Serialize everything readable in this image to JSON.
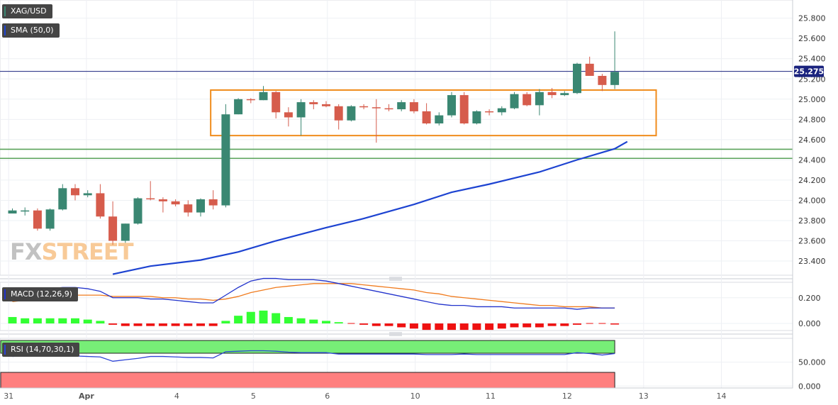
{
  "labels": {
    "symbol": "XAG/USD",
    "sma": "SMA (50,0)",
    "macd": "MACD (12,26,9)",
    "rsi": "RSI (14,70,30,1)",
    "price_tag": "25.275"
  },
  "watermark": {
    "part1": "FX",
    "part2": "STREET"
  },
  "colors": {
    "up": "#3a8772",
    "down": "#d65c4c",
    "sma": "#1d43d1",
    "box": "#f08c1c",
    "support": "#5aa35a",
    "price_line": "#1a237e",
    "macd_line": "#2233cc",
    "signal_line": "#f07b1e",
    "hist_up": "#33ff33",
    "hist_down": "#ee1111",
    "rsi_line": "#2d44d6",
    "rsi_upper_zone": "#77ee77",
    "rsi_lower_zone": "#ff7f7f",
    "tag_bg": "#1a237e"
  },
  "chart_data": [
    {
      "type": "candlestick",
      "title": "XAG/USD",
      "ylim": [
        23.26,
        25.98
      ],
      "y_ticks": [
        "25.800",
        "25.600",
        "25.400",
        "25.200",
        "25.000",
        "24.800",
        "24.600",
        "24.400",
        "24.200",
        "24.000",
        "23.800",
        "23.600",
        "23.400"
      ],
      "x_ticks": [
        "31",
        "Apr",
        "4",
        "5",
        "6",
        "10",
        "11",
        "12",
        "13",
        "14"
      ],
      "current_price": 25.275,
      "ohlc": [
        [
          23.87,
          23.92,
          23.87,
          23.9
        ],
        [
          23.9,
          23.93,
          23.85,
          23.9
        ],
        [
          23.9,
          23.92,
          23.7,
          23.72
        ],
        [
          23.72,
          23.92,
          23.7,
          23.91
        ],
        [
          23.91,
          24.16,
          23.9,
          24.12
        ],
        [
          24.12,
          24.16,
          24.0,
          24.05
        ],
        [
          24.05,
          24.1,
          24.03,
          24.07
        ],
        [
          24.07,
          24.16,
          23.82,
          23.84
        ],
        [
          23.84,
          23.99,
          23.56,
          23.6
        ],
        [
          23.6,
          23.77,
          23.58,
          23.77
        ],
        [
          23.77,
          24.03,
          23.76,
          24.02
        ],
        [
          24.02,
          24.19,
          24.0,
          24.01
        ],
        [
          24.01,
          24.03,
          23.88,
          23.99
        ],
        [
          23.99,
          24.01,
          23.94,
          23.96
        ],
        [
          23.96,
          24.0,
          23.84,
          23.88
        ],
        [
          23.88,
          24.02,
          23.84,
          24.01
        ],
        [
          24.01,
          24.1,
          23.91,
          23.95
        ],
        [
          23.95,
          24.95,
          23.93,
          24.85
        ],
        [
          24.85,
          25.01,
          24.85,
          25.0
        ],
        [
          25.0,
          25.01,
          24.96,
          24.99
        ],
        [
          24.99,
          25.13,
          24.99,
          25.07
        ],
        [
          25.07,
          25.08,
          24.81,
          24.87
        ],
        [
          24.87,
          24.92,
          24.73,
          24.82
        ],
        [
          24.82,
          25.0,
          24.64,
          24.97
        ],
        [
          24.97,
          24.99,
          24.9,
          24.95
        ],
        [
          24.95,
          24.98,
          24.92,
          24.93
        ],
        [
          24.93,
          24.95,
          24.7,
          24.79
        ],
        [
          24.79,
          24.94,
          24.78,
          24.93
        ],
        [
          24.93,
          24.95,
          24.9,
          24.92
        ],
        [
          24.92,
          25.0,
          24.57,
          24.91
        ],
        [
          24.91,
          24.95,
          24.88,
          24.9
        ],
        [
          24.9,
          24.99,
          24.88,
          24.97
        ],
        [
          24.97,
          25.0,
          24.86,
          24.88
        ],
        [
          24.88,
          24.96,
          24.75,
          24.76
        ],
        [
          24.76,
          24.87,
          24.74,
          24.84
        ],
        [
          24.84,
          25.07,
          24.82,
          25.04
        ],
        [
          25.04,
          25.07,
          24.75,
          24.76
        ],
        [
          24.76,
          24.89,
          24.75,
          24.88
        ],
        [
          24.88,
          24.9,
          24.84,
          24.87
        ],
        [
          24.87,
          24.93,
          24.84,
          24.91
        ],
        [
          24.91,
          25.07,
          24.9,
          25.05
        ],
        [
          25.05,
          25.07,
          24.93,
          24.94
        ],
        [
          24.94,
          25.1,
          24.84,
          25.07
        ],
        [
          25.07,
          25.11,
          25.01,
          25.04
        ],
        [
          25.04,
          25.08,
          25.03,
          25.06
        ],
        [
          25.06,
          25.36,
          25.05,
          25.35
        ],
        [
          25.35,
          25.42,
          25.24,
          25.23
        ],
        [
          25.23,
          25.25,
          25.08,
          25.14
        ],
        [
          25.14,
          25.67,
          25.1,
          25.27
        ]
      ],
      "sma_50": [
        [
          8,
          23.27
        ],
        [
          11,
          23.35
        ],
        [
          15,
          23.41
        ],
        [
          18,
          23.49
        ],
        [
          21,
          23.6
        ],
        [
          25,
          23.73
        ],
        [
          28,
          23.82
        ],
        [
          32,
          23.96
        ],
        [
          35,
          24.08
        ],
        [
          38,
          24.16
        ],
        [
          42,
          24.28
        ],
        [
          45,
          24.4
        ],
        [
          48,
          24.51
        ],
        [
          49,
          24.58
        ]
      ],
      "consolidation_box": {
        "top": 25.09,
        "bottom": 24.64,
        "start_index": 15.8,
        "end_index": 51.3
      },
      "support_lines": [
        24.505,
        24.415
      ]
    },
    {
      "type": "macd",
      "title": "MACD (12,26,9)",
      "ylim": [
        -0.055,
        0.32
      ],
      "y_ticks": [
        "0.200",
        "0.000"
      ],
      "histogram": [
        0.05,
        0.04,
        0.04,
        0.04,
        0.04,
        0.04,
        0.03,
        0.02,
        -0.01,
        -0.02,
        -0.02,
        -0.02,
        -0.02,
        -0.02,
        -0.02,
        -0.02,
        -0.02,
        0.02,
        0.06,
        0.09,
        0.1,
        0.08,
        0.05,
        0.04,
        0.03,
        0.02,
        0.01,
        0.0,
        -0.01,
        -0.02,
        -0.02,
        -0.03,
        -0.04,
        -0.05,
        -0.05,
        -0.05,
        -0.05,
        -0.05,
        -0.05,
        -0.04,
        -0.03,
        -0.03,
        -0.03,
        -0.02,
        -0.02,
        -0.01,
        0.0,
        0.0,
        -0.005
      ],
      "macd_line": [
        0.22,
        0.24,
        0.26,
        0.27,
        0.28,
        0.28,
        0.27,
        0.25,
        0.2,
        0.2,
        0.2,
        0.19,
        0.19,
        0.18,
        0.17,
        0.16,
        0.16,
        0.22,
        0.28,
        0.33,
        0.35,
        0.35,
        0.34,
        0.34,
        0.34,
        0.33,
        0.31,
        0.29,
        0.27,
        0.25,
        0.23,
        0.21,
        0.19,
        0.17,
        0.15,
        0.14,
        0.14,
        0.13,
        0.13,
        0.13,
        0.12,
        0.12,
        0.12,
        0.12,
        0.12,
        0.11,
        0.12,
        0.12,
        0.12
      ],
      "signal_line": [
        0.17,
        0.18,
        0.19,
        0.2,
        0.21,
        0.22,
        0.22,
        0.22,
        0.21,
        0.21,
        0.21,
        0.21,
        0.2,
        0.2,
        0.19,
        0.19,
        0.18,
        0.19,
        0.21,
        0.24,
        0.26,
        0.28,
        0.29,
        0.3,
        0.31,
        0.31,
        0.31,
        0.31,
        0.3,
        0.29,
        0.28,
        0.27,
        0.26,
        0.24,
        0.23,
        0.21,
        0.2,
        0.19,
        0.18,
        0.17,
        0.16,
        0.15,
        0.14,
        0.14,
        0.13,
        0.13,
        0.13,
        0.12,
        0.12
      ]
    },
    {
      "type": "rsi",
      "title": "RSI (14,70,30,1)",
      "ylim": [
        -4,
        100
      ],
      "y_ticks": [
        "50.000",
        "0.000"
      ],
      "levels": [
        70,
        30
      ],
      "values": [
        62,
        64,
        63,
        64,
        63,
        63,
        62,
        61,
        52,
        55,
        58,
        62,
        62,
        61,
        60,
        60,
        59,
        72,
        73,
        74,
        74,
        73,
        71,
        70,
        70,
        70,
        67,
        67,
        67,
        67,
        67,
        67,
        67,
        66,
        66,
        66,
        67,
        66,
        66,
        66,
        66,
        66,
        66,
        66,
        66,
        70,
        68,
        65,
        68
      ]
    }
  ]
}
